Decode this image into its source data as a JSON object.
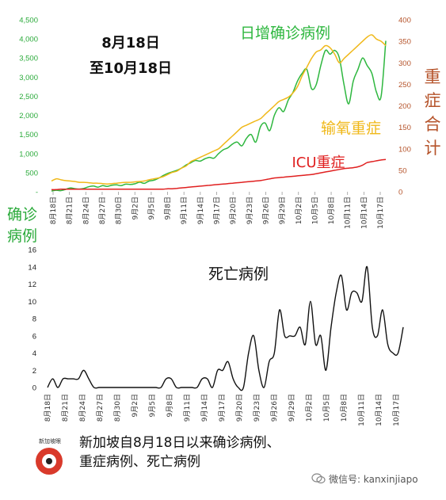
{
  "chart_data": [
    {
      "type": "line",
      "date_range_text": [
        "8月18日",
        "至10月18日"
      ],
      "x_tick_labels": [
        "8月18日",
        "8月21日",
        "8月24日",
        "8月27日",
        "8月30日",
        "9月2日",
        "9月5日",
        "9月8日",
        "9月11日",
        "9月14日",
        "9月17日",
        "9月20日",
        "9月23日",
        "9月26日",
        "9月29日",
        "10月2日",
        "10月5日",
        "10月8日",
        "10月11日",
        "10月14日",
        "10月17日"
      ],
      "left_axis": {
        "ylabel": "确诊病例",
        "ticks": [
          "-",
          "500",
          "1,000",
          "1,500",
          "2,000",
          "2,500",
          "3,000",
          "3,500",
          "4,000",
          "4,500"
        ],
        "ylim": [
          0,
          4500
        ],
        "color": "#2aaa3a"
      },
      "right_axis": {
        "ylabel": "重症合计",
        "ticks": [
          "0",
          "50",
          "100",
          "150",
          "200",
          "250",
          "300",
          "350",
          "400"
        ],
        "ylim": [
          0,
          400
        ],
        "color": "#b5532a"
      },
      "series": [
        {
          "name": "日增确诊病例",
          "axis": "left",
          "color": "#2eb73f",
          "values": [
            20,
            40,
            30,
            60,
            100,
            80,
            70,
            90,
            130,
            150,
            120,
            160,
            140,
            170,
            180,
            160,
            200,
            190,
            210,
            250,
            220,
            280,
            300,
            350,
            420,
            480,
            520,
            560,
            620,
            700,
            760,
            820,
            800,
            860,
            900,
            880,
            1000,
            1100,
            1150,
            1250,
            1300,
            1200,
            1400,
            1500,
            1300,
            1700,
            1800,
            1600,
            2000,
            2200,
            2100,
            2400,
            2600,
            2900,
            3100,
            3200,
            2700,
            2800,
            3300,
            3700,
            3600,
            3700,
            3500,
            2800,
            2300,
            2900,
            3200,
            3500,
            3300,
            3100,
            2600,
            2500,
            3950
          ]
        },
        {
          "name": "输氧重症",
          "axis": "right",
          "color": "#f0b819",
          "values": [
            25,
            30,
            28,
            26,
            25,
            24,
            22,
            22,
            21,
            20,
            20,
            19,
            18,
            19,
            20,
            21,
            22,
            22,
            23,
            24,
            25,
            28,
            30,
            32,
            35,
            40,
            45,
            48,
            55,
            60,
            70,
            75,
            80,
            85,
            90,
            95,
            100,
            110,
            120,
            130,
            140,
            150,
            155,
            160,
            165,
            170,
            180,
            190,
            200,
            210,
            215,
            220,
            230,
            245,
            270,
            290,
            310,
            325,
            330,
            340,
            335,
            320,
            300,
            310,
            320,
            330,
            340,
            350,
            360,
            365,
            355,
            350,
            340
          ]
        },
        {
          "name": "ICU重症",
          "axis": "right",
          "color": "#e02020",
          "values": [
            5,
            5,
            6,
            6,
            6,
            6,
            6,
            6,
            6,
            6,
            6,
            6,
            6,
            6,
            6,
            6,
            6,
            6,
            6,
            6,
            6,
            6,
            6,
            6,
            6,
            7,
            7,
            8,
            9,
            10,
            11,
            12,
            13,
            14,
            15,
            16,
            17,
            18,
            19,
            20,
            21,
            22,
            23,
            24,
            25,
            26,
            28,
            30,
            32,
            33,
            34,
            35,
            36,
            37,
            38,
            39,
            40,
            42,
            44,
            46,
            48,
            50,
            52,
            54,
            55,
            56,
            58,
            62,
            68,
            70,
            72,
            74,
            75
          ]
        }
      ]
    },
    {
      "type": "line",
      "x_tick_labels": [
        "8月18日",
        "8月21日",
        "8月24日",
        "8月27日",
        "8月30日",
        "9月2日",
        "9月5日",
        "9月8日",
        "9月11日",
        "9月14日",
        "9月17日",
        "9月20日",
        "9月23日",
        "9月26日",
        "9月29日",
        "10月2日",
        "10月5日",
        "10月8日",
        "10月11日",
        "10月14日",
        "10月17日"
      ],
      "y_ticks": [
        "0",
        "2",
        "4",
        "6",
        "8",
        "10",
        "12",
        "14",
        "16"
      ],
      "ylim": [
        0,
        16
      ],
      "series": [
        {
          "name": "死亡病例",
          "color": "#111111",
          "values": [
            0,
            1,
            0,
            1,
            1,
            1,
            1,
            2,
            1,
            0,
            0,
            0,
            0,
            0,
            0,
            0,
            0,
            0,
            0,
            0,
            0,
            0,
            0,
            1,
            1,
            0,
            0,
            0,
            0,
            0,
            1,
            1,
            0,
            2,
            2,
            3,
            1,
            0,
            0,
            4,
            6,
            2,
            0,
            3,
            4,
            9,
            6,
            6,
            6,
            7,
            5,
            10,
            5,
            6,
            2,
            7,
            11,
            13,
            9,
            11,
            11,
            10,
            14,
            7,
            6,
            9,
            5,
            4,
            4,
            7
          ]
        }
      ]
    }
  ],
  "footer": {
    "logo_text": "新加坡眼",
    "caption_line1": "新加坡自8月18日以来确诊病例、",
    "caption_line2": "重症病例、死亡病例",
    "wechat_label": "微信号: kanxinjiapo"
  }
}
